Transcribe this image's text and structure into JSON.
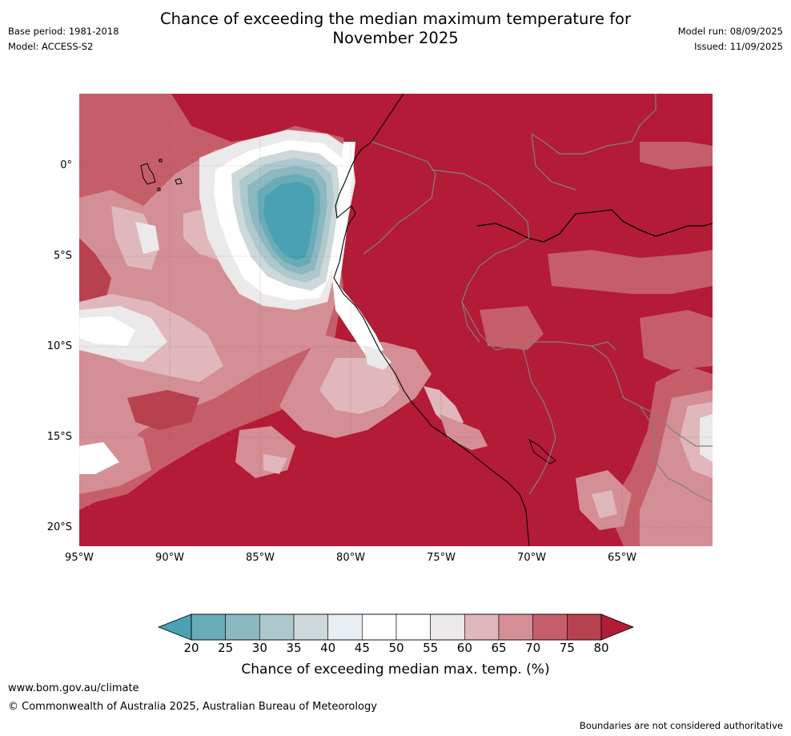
{
  "header": {
    "title_line1": "Chance of exceeding the median maximum temperature for",
    "title_line2": "November 2025",
    "base_period": "Base period: 1981-2018",
    "model": "Model: ACCESS-S2",
    "model_run": "Model run: 08/09/2025",
    "issued": "Issued: 11/09/2025"
  },
  "map": {
    "lat_labels": [
      "0°",
      "5°S",
      "10°S",
      "15°S",
      "20°S"
    ],
    "lon_labels": [
      "95°W",
      "90°W",
      "85°W",
      "80°W",
      "75°W",
      "70°W",
      "65°W"
    ],
    "background_color": "#b31b37",
    "coastline_color": "#000000",
    "border_color": "#808080"
  },
  "colorbar": {
    "ticks": [
      "20",
      "25",
      "30",
      "35",
      "40",
      "45",
      "50",
      "55",
      "60",
      "65",
      "70",
      "75",
      "80"
    ],
    "colors": [
      "#4aa1b3",
      "#6aabb8",
      "#8bb8c1",
      "#adc9ce",
      "#cdd8db",
      "#e8eef1",
      "#ffffff",
      "#ffffff",
      "#ebe9e9",
      "#e0b7bc",
      "#d48e96",
      "#c65e6a",
      "#b8414f",
      "#b31b37"
    ],
    "label": "Chance of exceeding median max. temp. (%)"
  },
  "footer": {
    "website": "www.bom.gov.au/climate",
    "copyright": "© Commonwealth of Australia 2025, Australian Bureau of Meteorology",
    "disclaimer": "Boundaries are not considered authoritative"
  }
}
